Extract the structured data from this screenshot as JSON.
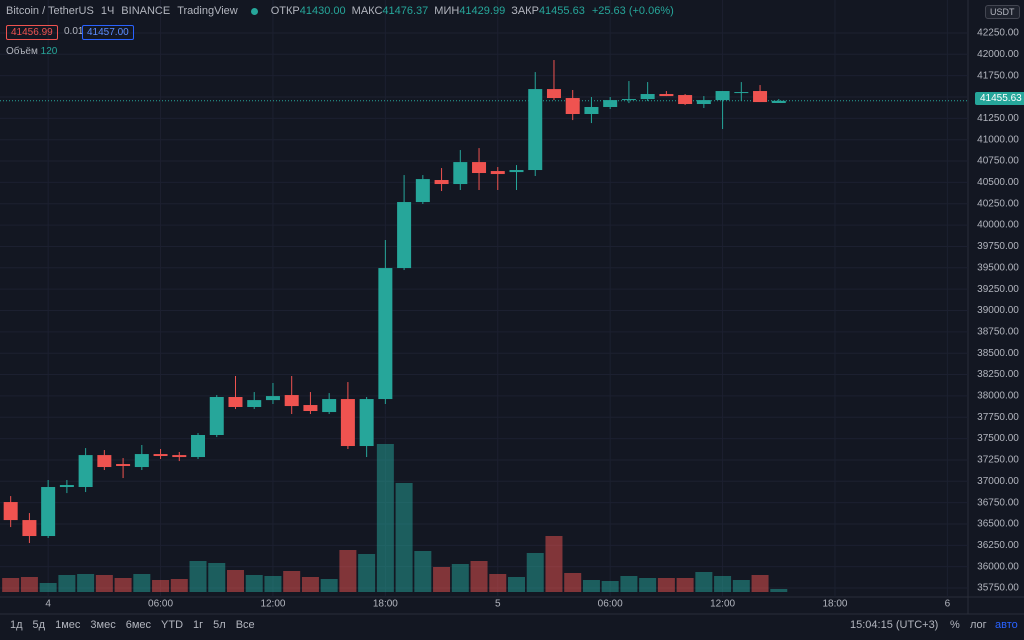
{
  "header": {
    "symbol": "Bitcoin / TetherUS",
    "interval": "1Ч",
    "exchange": "BINANCE",
    "source": "TradingView",
    "ohlc": [
      {
        "label": "ОТКР",
        "value": "41430.00"
      },
      {
        "label": "МАКС",
        "value": "41476.37"
      },
      {
        "label": "МИН",
        "value": "41429.99"
      },
      {
        "label": "ЗАКР",
        "value": "41455.63"
      }
    ],
    "change": "+25.63 (+0.06%)",
    "bid": "41456.99",
    "spread": "0.01",
    "ask": "41457.00",
    "volume_label": "Объём",
    "volume_value": "120",
    "currency": "USDT"
  },
  "chart_data": {
    "type": "candlestick",
    "up_color": "#26a69a",
    "down_color": "#ef5350",
    "grid": true,
    "x": [
      -2,
      -1,
      0,
      1,
      2,
      3,
      4,
      5,
      6,
      7,
      8,
      9,
      10,
      11,
      12,
      13,
      14,
      15,
      16,
      17,
      18,
      19,
      20,
      21,
      22,
      23,
      24,
      25,
      26,
      27,
      28,
      29,
      30,
      31,
      32,
      33,
      34,
      35,
      36,
      37,
      38,
      39
    ],
    "open": [
      36757,
      36546,
      36359,
      36933,
      36933,
      37307,
      37202,
      37167,
      37319,
      37307,
      37284,
      37542,
      37987,
      37870,
      37951,
      38010,
      37893,
      37811,
      37963,
      37413,
      37963,
      39497,
      40270,
      40528,
      40481,
      40738,
      40633,
      40621,
      40645,
      41593,
      41488,
      41301,
      41383,
      41464,
      41476,
      41535,
      41523,
      41418,
      41464,
      41558,
      41570,
      41430
    ],
    "high": [
      36827,
      36628,
      37015,
      37015,
      37389,
      37366,
      37272,
      37425,
      37378,
      37343,
      37565,
      38010,
      38233,
      38045,
      38151,
      38233,
      38045,
      38033,
      38162,
      37987,
      39825,
      40586,
      40586,
      40668,
      40879,
      40902,
      40680,
      40703,
      41792,
      41933,
      41582,
      41500,
      41500,
      41687,
      41675,
      41570,
      41535,
      41511,
      41570,
      41675,
      41640,
      41476.37
    ],
    "low": [
      36464,
      36277,
      36336,
      36862,
      36874,
      37132,
      37038,
      37132,
      37261,
      37237,
      37261,
      37518,
      37846,
      37846,
      37905,
      37788,
      37788,
      37788,
      37378,
      37284,
      37905,
      39474,
      40247,
      40399,
      40411,
      40411,
      40411,
      40411,
      40575,
      41464,
      41230,
      41195,
      41359,
      41429,
      41453,
      41511,
      41406,
      41371,
      41125,
      41453,
      41441,
      41429.99
    ],
    "close": [
      36546,
      36359,
      36933,
      36956,
      37307,
      37167,
      37179,
      37319,
      37296,
      37284,
      37542,
      37987,
      37870,
      37951,
      37998,
      37881,
      37823,
      37963,
      37413,
      37963,
      39497,
      40270,
      40539,
      40481,
      40738,
      40610,
      40598,
      40645,
      41593,
      41488,
      41301,
      41383,
      41464,
      41476,
      41535,
      41511,
      41418,
      41464,
      41570,
      41558,
      41441,
      41455.63
    ],
    "volume": [
      560,
      600,
      360,
      680,
      720,
      680,
      560,
      720,
      480,
      520,
      1240,
      1160,
      880,
      680,
      640,
      840,
      600,
      520,
      1680,
      1520,
      5920,
      4360,
      1640,
      1000,
      1120,
      1240,
      720,
      600,
      1560,
      2240,
      760,
      480,
      440,
      640,
      560,
      560,
      560,
      800,
      640,
      480,
      680,
      120
    ],
    "last_price": {
      "value": 41455.63,
      "label": "41455.63"
    },
    "ylim": [
      35645,
      42636
    ],
    "yticks": [
      {
        "value": 35750,
        "label": "35750.00"
      },
      {
        "value": 36000,
        "label": "36000.00"
      },
      {
        "value": 36250,
        "label": "36250.00"
      },
      {
        "value": 36500,
        "label": "36500.00"
      },
      {
        "value": 36750,
        "label": "36750.00"
      },
      {
        "value": 37000,
        "label": "37000.00"
      },
      {
        "value": 37250,
        "label": "37250.00"
      },
      {
        "value": 37500,
        "label": "37500.00"
      },
      {
        "value": 37750,
        "label": "37750.00"
      },
      {
        "value": 38000,
        "label": "38000.00"
      },
      {
        "value": 38250,
        "label": "38250.00"
      },
      {
        "value": 38500,
        "label": "38500.00"
      },
      {
        "value": 38750,
        "label": "38750.00"
      },
      {
        "value": 39000,
        "label": "39000.00"
      },
      {
        "value": 39250,
        "label": "39250.00"
      },
      {
        "value": 39500,
        "label": "39500.00"
      },
      {
        "value": 39750,
        "label": "39750.00"
      },
      {
        "value": 40000,
        "label": "40000.00"
      },
      {
        "value": 40250,
        "label": "40250.00"
      },
      {
        "value": 40500,
        "label": "40500.00"
      },
      {
        "value": 40750,
        "label": "40750.00"
      },
      {
        "value": 41000,
        "label": "41000.00"
      },
      {
        "value": 41250,
        "label": "41250.00"
      },
      {
        "value": 41500,
        "label": "41500.00"
      },
      {
        "value": 41750,
        "label": "41750.00"
      },
      {
        "value": 42000,
        "label": "42000.00"
      },
      {
        "value": 42250,
        "label": "42250.00"
      }
    ],
    "xlim": [
      -2.57,
      49.1
    ],
    "xticks": [
      {
        "value": 0,
        "label": "4"
      },
      {
        "value": 6,
        "label": "06:00"
      },
      {
        "value": 12,
        "label": "12:00"
      },
      {
        "value": 18,
        "label": "18:00"
      },
      {
        "value": 24,
        "label": "5"
      },
      {
        "value": 30,
        "label": "06:00"
      },
      {
        "value": 36,
        "label": "12:00"
      },
      {
        "value": 42,
        "label": "18:00"
      },
      {
        "value": 48,
        "label": "6"
      }
    ]
  },
  "toolbar": {
    "ranges": [
      "1д",
      "5д",
      "1мес",
      "3мес",
      "6мес",
      "YTD",
      "1г",
      "5л",
      "Все"
    ],
    "time": "15:04:15 (UTC+3)",
    "percent": "%",
    "log": "лог",
    "auto": "авто"
  }
}
